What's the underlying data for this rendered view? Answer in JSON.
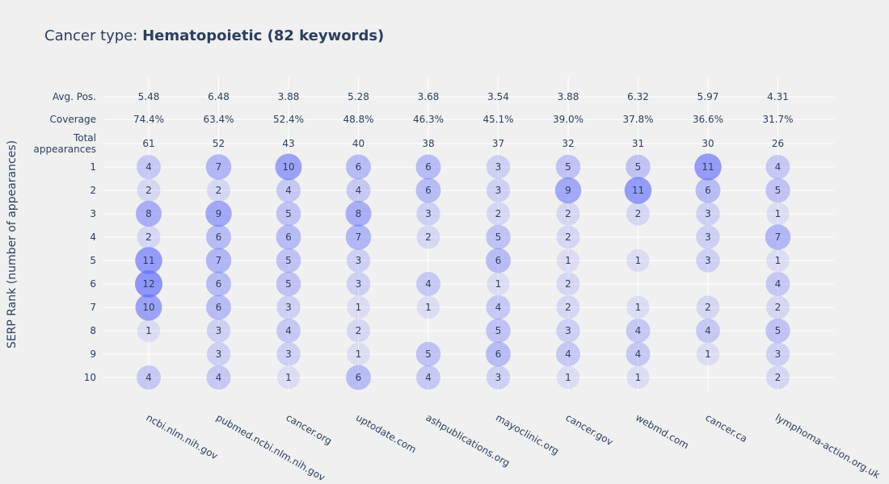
{
  "chart_data": {
    "type": "scatter",
    "title_prefix": "Cancer type: ",
    "title_bold": "Hematopoietic (82 keywords)",
    "ylabel": "SERP Rank (number of appearances)",
    "categories": [
      "ncbi.nlm.nih.gov",
      "pubmed.ncbi.nlm.nih.gov",
      "cancer.org",
      "uptodate.com",
      "ashpublications.org",
      "mayoclinic.org",
      "cancer.gov",
      "webmd.com",
      "cancer.ca",
      "lymphoma-action.org.uk"
    ],
    "summary_rows": [
      {
        "label": "Avg. Pos.",
        "values": [
          "5.48",
          "6.48",
          "3.88",
          "5.28",
          "3.68",
          "3.54",
          "3.88",
          "6.32",
          "5.97",
          "4.31"
        ]
      },
      {
        "label": "Coverage",
        "values": [
          "74.4%",
          "63.4%",
          "52.4%",
          "48.8%",
          "46.3%",
          "45.1%",
          "39.0%",
          "37.8%",
          "36.6%",
          "31.7%"
        ]
      },
      {
        "label": "Total appearances",
        "label_lines": [
          "Total",
          "appearances"
        ],
        "values": [
          "61",
          "52",
          "43",
          "40",
          "38",
          "37",
          "32",
          "31",
          "30",
          "26"
        ]
      }
    ],
    "ranks": [
      1,
      2,
      3,
      4,
      5,
      6,
      7,
      8,
      9,
      10
    ],
    "counts": [
      [
        4,
        7,
        10,
        6,
        6,
        3,
        5,
        5,
        11,
        4
      ],
      [
        2,
        2,
        4,
        4,
        6,
        3,
        9,
        11,
        6,
        5
      ],
      [
        8,
        9,
        5,
        8,
        3,
        2,
        2,
        2,
        3,
        1
      ],
      [
        2,
        6,
        6,
        7,
        2,
        5,
        2,
        null,
        3,
        7
      ],
      [
        11,
        7,
        5,
        3,
        null,
        6,
        1,
        1,
        3,
        1
      ],
      [
        12,
        6,
        5,
        3,
        4,
        1,
        2,
        null,
        null,
        4
      ],
      [
        10,
        6,
        3,
        1,
        1,
        4,
        2,
        1,
        2,
        2
      ],
      [
        1,
        3,
        4,
        2,
        null,
        5,
        3,
        4,
        4,
        5
      ],
      [
        null,
        3,
        3,
        1,
        5,
        6,
        4,
        4,
        1,
        3
      ],
      [
        4,
        4,
        1,
        6,
        4,
        3,
        1,
        1,
        null,
        2
      ]
    ],
    "bubble_color": "#636efa",
    "max_count": 12,
    "grid": true
  }
}
